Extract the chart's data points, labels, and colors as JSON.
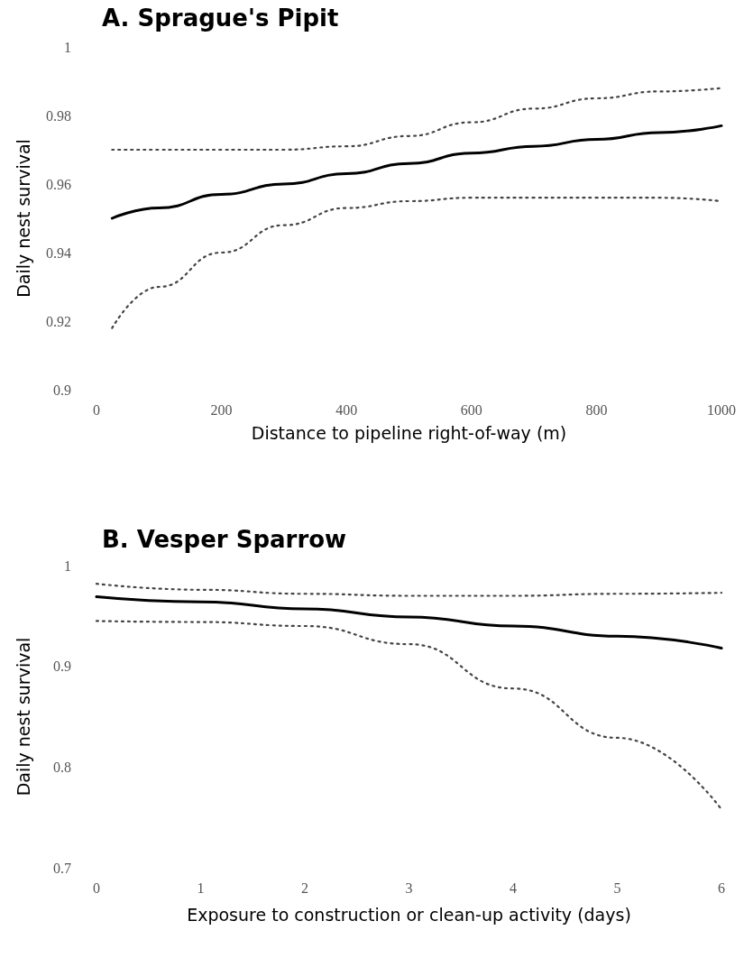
{
  "chart_data": [
    {
      "type": "line",
      "title": "A. Sprague's Pipit",
      "xlabel": "Distance to pipeline right-of-way (m)",
      "ylabel": "Daily nest survival",
      "xlim": [
        0,
        1000
      ],
      "xticks": [
        0,
        200,
        400,
        600,
        800,
        1000
      ],
      "ylim": [
        0.9,
        1
      ],
      "yticks": [
        0.9,
        0.92,
        0.94,
        0.96,
        0.98,
        1
      ],
      "marker": "none",
      "series": [
        {
          "color": "#000000",
          "line_style": "solid",
          "x": [
            25,
            100,
            200,
            300,
            400,
            500,
            600,
            700,
            800,
            900,
            1000
          ],
          "values": [
            0.95,
            0.953,
            0.957,
            0.96,
            0.963,
            0.966,
            0.969,
            0.971,
            0.973,
            0.975,
            0.977
          ]
        },
        {
          "color": "#444444",
          "line_style": "dotted",
          "x": [
            25,
            100,
            200,
            300,
            400,
            500,
            600,
            700,
            800,
            900,
            1000
          ],
          "values": [
            0.97,
            0.97,
            0.97,
            0.97,
            0.971,
            0.974,
            0.978,
            0.982,
            0.985,
            0.987,
            0.988
          ]
        },
        {
          "color": "#444444",
          "line_style": "dotted",
          "x": [
            25,
            100,
            200,
            300,
            400,
            500,
            600,
            700,
            800,
            900,
            1000
          ],
          "values": [
            0.918,
            0.93,
            0.94,
            0.948,
            0.953,
            0.955,
            0.956,
            0.956,
            0.956,
            0.956,
            0.955
          ]
        }
      ]
    },
    {
      "type": "line",
      "title": "B. Vesper Sparrow",
      "xlabel": "Exposure to construction or clean-up activity (days)",
      "ylabel": "Daily nest survival",
      "xlim": [
        0,
        6
      ],
      "xticks": [
        0,
        1,
        2,
        3,
        4,
        5,
        6
      ],
      "ylim": [
        0.7,
        1
      ],
      "yticks": [
        0.7,
        0.8,
        0.9,
        1
      ],
      "marker": "none",
      "series": [
        {
          "color": "#000000",
          "line_style": "solid",
          "x": [
            0,
            1,
            2,
            3,
            4,
            5,
            6
          ],
          "values": [
            0.969,
            0.964,
            0.957,
            0.949,
            0.94,
            0.93,
            0.918
          ]
        },
        {
          "color": "#444444",
          "line_style": "dotted",
          "x": [
            0,
            1,
            2,
            3,
            4,
            5,
            6
          ],
          "values": [
            0.982,
            0.976,
            0.972,
            0.97,
            0.97,
            0.972,
            0.973
          ]
        },
        {
          "color": "#444444",
          "line_style": "dotted",
          "x": [
            0,
            1,
            2,
            3,
            4,
            5,
            6
          ],
          "values": [
            0.945,
            0.944,
            0.94,
            0.922,
            0.878,
            0.829,
            0.758
          ]
        }
      ]
    }
  ]
}
